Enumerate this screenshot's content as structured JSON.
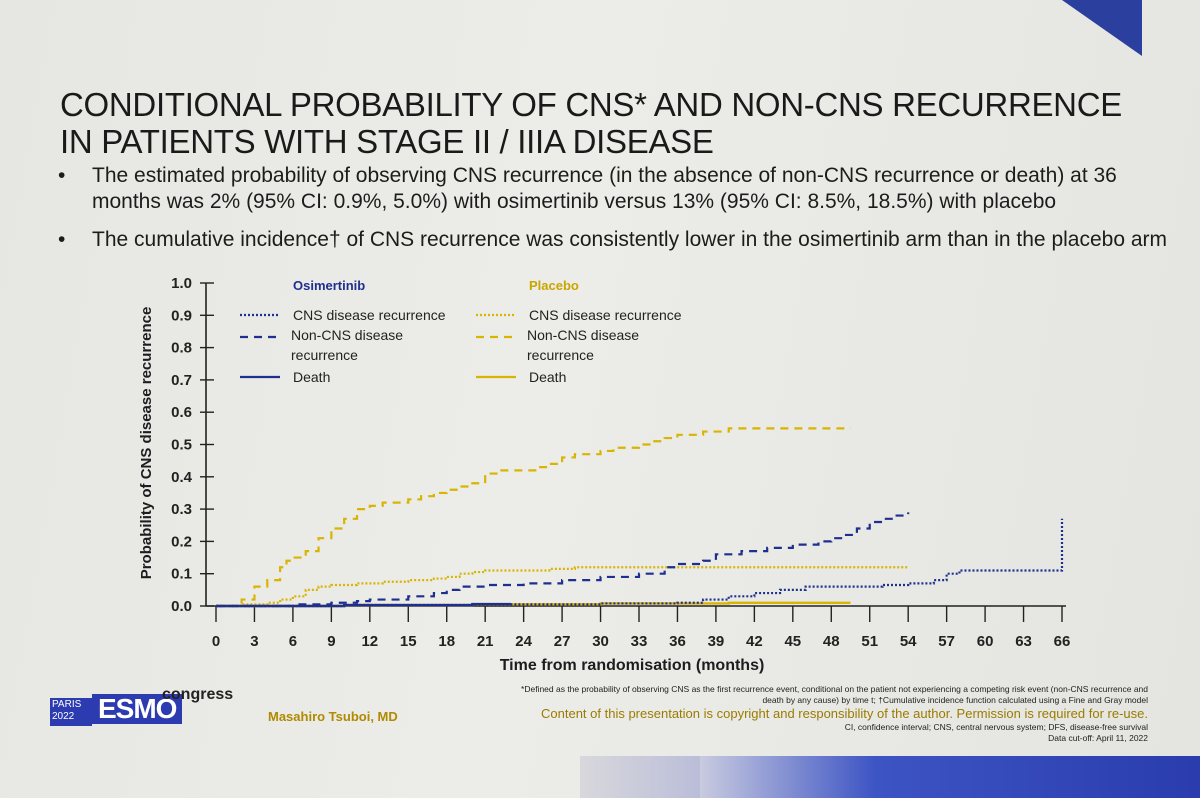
{
  "title": "CONDITIONAL PROBABILITY OF CNS* AND NON-CNS RECURRENCE IN PATIENTS WITH STAGE II / IIIA DISEASE",
  "bullets": [
    "The estimated probability of observing CNS recurrence (in the absence of non-CNS recurrence or death) at 36 months was 2% (95% CI: 0.9%, 5.0%) with osimertinib versus 13% (95% CI: 8.5%, 18.5%) with placebo",
    "The cumulative incidence† of CNS recurrence was consistently lower in the osimertinib arm than in the placebo arm"
  ],
  "colors": {
    "osimertinib": "#1f2f8f",
    "placebo": "#d9b400",
    "brand": "#2c3bb0"
  },
  "chart_data": {
    "type": "line",
    "xlabel": "Time from randomisation (months)",
    "ylabel": "Probability of CNS disease recurrence",
    "xlim": [
      0,
      66
    ],
    "ylim": [
      0,
      1.0
    ],
    "xticks": [
      "0",
      "3",
      "6",
      "9",
      "12",
      "15",
      "18",
      "21",
      "24",
      "27",
      "30",
      "33",
      "36",
      "39",
      "42",
      "45",
      "48",
      "51",
      "54",
      "57",
      "60",
      "63",
      "66"
    ],
    "yticks": [
      "0.0",
      "0.1",
      "0.2",
      "0.3",
      "0.4",
      "0.5",
      "0.6",
      "0.7",
      "0.8",
      "0.9",
      "1.0"
    ],
    "legend": {
      "osimertinib_header": "Osimertinib",
      "placebo_header": "Placebo",
      "osimertinib_items": [
        "CNS disease recurrence",
        "Non-CNS disease recurrence",
        "Death"
      ],
      "placebo_items": [
        "CNS disease recurrence",
        "Non-CNS disease recurrence",
        "Death"
      ]
    },
    "series": [
      {
        "arm": "placebo",
        "style": "dash",
        "x": [
          0,
          2,
          3,
          4,
          5,
          5.5,
          6,
          7,
          8,
          9,
          10,
          11,
          12,
          13,
          14,
          15,
          16,
          17,
          18,
          19,
          20,
          21,
          22,
          24,
          25,
          26,
          27,
          28,
          29,
          30,
          31,
          32,
          33,
          34,
          35,
          36,
          37,
          38,
          39,
          40,
          42,
          44,
          46,
          48,
          49.5
        ],
        "y": [
          0,
          0.02,
          0.06,
          0.08,
          0.12,
          0.14,
          0.15,
          0.17,
          0.21,
          0.24,
          0.27,
          0.3,
          0.31,
          0.32,
          0.32,
          0.33,
          0.34,
          0.35,
          0.36,
          0.37,
          0.38,
          0.41,
          0.42,
          0.42,
          0.43,
          0.44,
          0.46,
          0.47,
          0.47,
          0.48,
          0.49,
          0.49,
          0.5,
          0.51,
          0.52,
          0.53,
          0.53,
          0.54,
          0.54,
          0.55,
          0.55,
          0.55,
          0.55,
          0.55,
          0.55
        ]
      },
      {
        "arm": "placebo",
        "style": "dot",
        "x": [
          0,
          2,
          4,
          5,
          6,
          7,
          8,
          9,
          11,
          13,
          15,
          17,
          18,
          19,
          20,
          21,
          22,
          24,
          26,
          28,
          30,
          33,
          36,
          40,
          44,
          48,
          52,
          54
        ],
        "y": [
          0,
          0.005,
          0.01,
          0.02,
          0.03,
          0.05,
          0.06,
          0.065,
          0.07,
          0.075,
          0.08,
          0.085,
          0.09,
          0.1,
          0.105,
          0.11,
          0.11,
          0.11,
          0.115,
          0.12,
          0.12,
          0.12,
          0.12,
          0.12,
          0.12,
          0.12,
          0.12,
          0.12
        ]
      },
      {
        "arm": "placebo",
        "style": "solid",
        "x": [
          0,
          10,
          20,
          30,
          40,
          49.5
        ],
        "y": [
          0,
          0.003,
          0.005,
          0.008,
          0.01,
          0.01
        ]
      },
      {
        "arm": "osimertinib",
        "style": "dash",
        "x": [
          0,
          6,
          9,
          11,
          12,
          15,
          17,
          18,
          19,
          21,
          24,
          27,
          30,
          33,
          35,
          36,
          38,
          39,
          41,
          43,
          45,
          47,
          48,
          49,
          50,
          51,
          52,
          53,
          54
        ],
        "y": [
          0,
          0.005,
          0.01,
          0.015,
          0.02,
          0.03,
          0.04,
          0.05,
          0.06,
          0.065,
          0.07,
          0.08,
          0.09,
          0.1,
          0.12,
          0.13,
          0.14,
          0.16,
          0.17,
          0.18,
          0.19,
          0.2,
          0.21,
          0.22,
          0.24,
          0.26,
          0.27,
          0.28,
          0.29
        ]
      },
      {
        "arm": "osimertinib",
        "style": "dot",
        "x": [
          0,
          10,
          20,
          30,
          36,
          38,
          40,
          42,
          44,
          46,
          48,
          50,
          52,
          54,
          56,
          57,
          58,
          60,
          62,
          64,
          66,
          66
        ],
        "y": [
          0,
          0.003,
          0.005,
          0.008,
          0.01,
          0.02,
          0.03,
          0.04,
          0.05,
          0.06,
          0.06,
          0.06,
          0.065,
          0.07,
          0.08,
          0.1,
          0.11,
          0.11,
          0.11,
          0.11,
          0.11,
          0.27
        ]
      },
      {
        "arm": "osimertinib",
        "style": "solid",
        "x": [
          0,
          10,
          20,
          23
        ],
        "y": [
          0,
          0.003,
          0.006,
          0.008
        ]
      }
    ]
  },
  "footer": {
    "paris": "PARIS",
    "year": "2022",
    "esmo": "ESMO",
    "congress": "congress",
    "author": "Masahiro Tsuboi, MD",
    "footnote1": "*Defined as the probability of observing CNS as the first recurrence event, conditional on the patient not experiencing a competing risk event (non-CNS recurrence and death by any cause) by time t; †Cumulative incidence function calculated using a Fine and Gray model",
    "copyright": "Content of this presentation is copyright and responsibility of the author. Permission is required for re-use.",
    "abbrev": "CI, confidence interval; CNS, central nervous system; DFS, disease-free survival",
    "cutoff": "Data cut-off: April 11, 2022"
  }
}
